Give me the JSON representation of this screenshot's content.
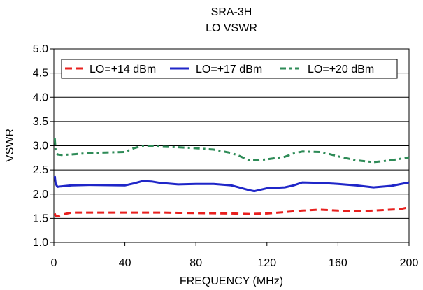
{
  "chart_data": {
    "type": "line",
    "title": "SRA-3H",
    "subtitle": "LO VSWR",
    "xlabel": "FREQUENCY (MHz)",
    "ylabel": "VSWR",
    "xlim": [
      0,
      200
    ],
    "ylim": [
      1.0,
      5.0
    ],
    "xticks": [
      0,
      40,
      80,
      120,
      160,
      200
    ],
    "yticks": [
      1.0,
      1.5,
      2.0,
      2.5,
      3.0,
      3.5,
      4.0,
      4.5,
      5.0
    ],
    "xtick_labels": [
      "0",
      "40",
      "80",
      "120",
      "160",
      "200"
    ],
    "ytick_labels": [
      "1.0",
      "1.5",
      "2.0",
      "2.5",
      "3.0",
      "3.5",
      "4.0",
      "4.5",
      "5.0"
    ],
    "grid": "horizontal",
    "legend_position": "top",
    "series": [
      {
        "name": "LO=+14 dBm",
        "color": "#e8201e",
        "dash": "dashed",
        "x": [
          0.5,
          1,
          3,
          5,
          10,
          20,
          40,
          60,
          80,
          100,
          110,
          120,
          130,
          140,
          150,
          160,
          170,
          180,
          190,
          195,
          200
        ],
        "y": [
          1.6,
          1.55,
          1.55,
          1.58,
          1.62,
          1.62,
          1.62,
          1.62,
          1.61,
          1.6,
          1.59,
          1.6,
          1.63,
          1.66,
          1.68,
          1.66,
          1.65,
          1.66,
          1.68,
          1.69,
          1.73
        ]
      },
      {
        "name": "LO=+17 dBm",
        "color": "#1f26c8",
        "dash": "solid",
        "x": [
          0.5,
          1,
          2,
          4,
          10,
          20,
          40,
          45,
          50,
          55,
          60,
          70,
          80,
          90,
          100,
          105,
          110,
          113,
          120,
          130,
          135,
          140,
          150,
          160,
          170,
          180,
          190,
          200
        ],
        "y": [
          2.37,
          2.22,
          2.15,
          2.16,
          2.18,
          2.19,
          2.18,
          2.22,
          2.27,
          2.26,
          2.23,
          2.2,
          2.21,
          2.21,
          2.18,
          2.13,
          2.08,
          2.06,
          2.12,
          2.14,
          2.18,
          2.24,
          2.23,
          2.21,
          2.18,
          2.14,
          2.17,
          2.24
        ]
      },
      {
        "name": "LO=+20 dBm",
        "color": "#2e8b57",
        "dash": "dashdot",
        "x": [
          0.5,
          1,
          2,
          4,
          10,
          20,
          40,
          45,
          50,
          55,
          60,
          70,
          80,
          90,
          100,
          105,
          110,
          115,
          120,
          130,
          135,
          140,
          150,
          155,
          160,
          170,
          180,
          190,
          200
        ],
        "y": [
          3.15,
          2.9,
          2.82,
          2.81,
          2.82,
          2.85,
          2.87,
          2.95,
          3.0,
          3.0,
          2.98,
          2.97,
          2.95,
          2.92,
          2.85,
          2.78,
          2.7,
          2.7,
          2.72,
          2.77,
          2.84,
          2.88,
          2.87,
          2.83,
          2.78,
          2.7,
          2.66,
          2.7,
          2.76
        ]
      }
    ]
  }
}
